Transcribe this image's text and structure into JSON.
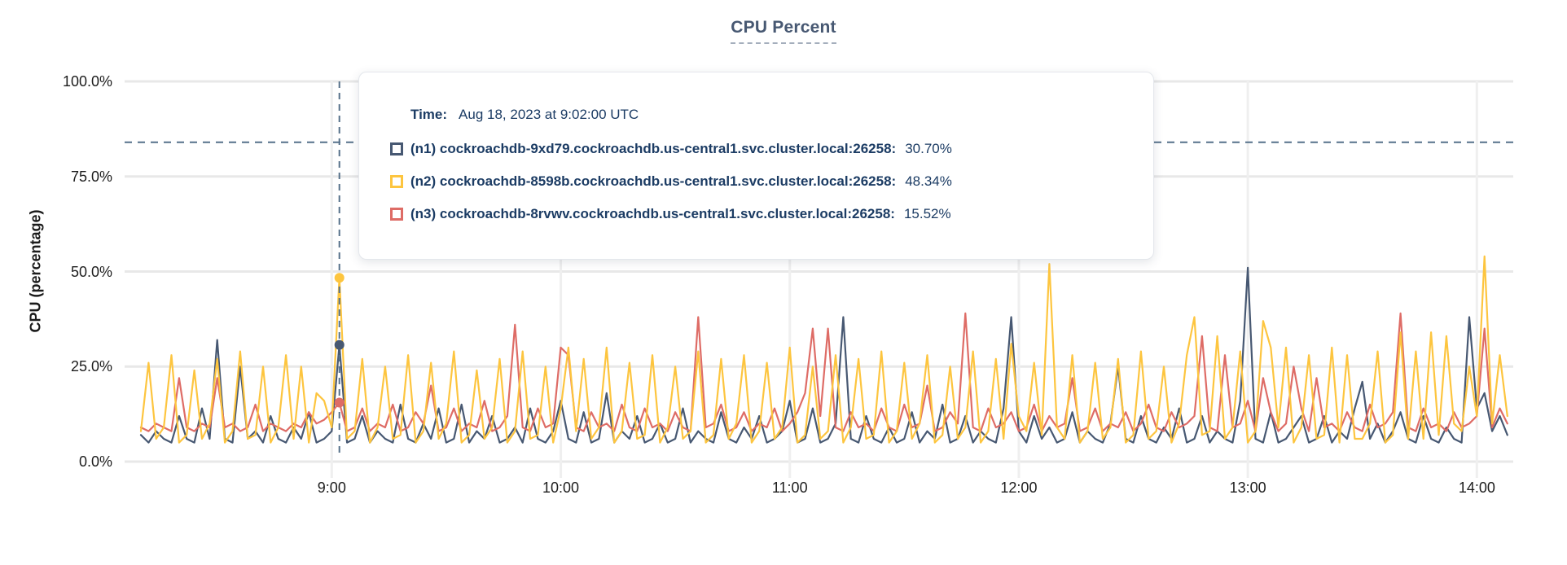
{
  "title": "CPU Percent",
  "tooltip": {
    "time_label": "Time:",
    "time_value": "Aug 18, 2023 at 9:02:00 UTC",
    "rows": [
      {
        "label": "(n1) cockroachdb-9xd79.cockroachdb.us-central1.svc.cluster.local:26258:",
        "value": "30.70%",
        "color": "#475872"
      },
      {
        "label": "(n2) cockroachdb-8598b.cockroachdb.us-central1.svc.cluster.local:26258:",
        "value": "48.34%",
        "color": "#fdc53f"
      },
      {
        "label": "(n3) cockroachdb-8rvwv.cockroachdb.us-central1.svc.cluster.local:26258:",
        "value": "15.52%",
        "color": "#de6c66"
      }
    ]
  },
  "colors": {
    "title": "#475872",
    "grid_horizontal": "#e8e8e8",
    "grid_vertical": "#efefef",
    "dashed_rule": "#56718a",
    "axis_text": "#1d1d1d",
    "tooltip_text": "#1c3c64"
  },
  "chart_data": {
    "type": "line",
    "title": "CPU Percent",
    "xlabel": "",
    "ylabel": "CPU (percentage)",
    "ylim": [
      0,
      100
    ],
    "grid": true,
    "y_ticks": [
      {
        "value": 100,
        "label": "100.0%"
      },
      {
        "value": 75,
        "label": "75.0%"
      },
      {
        "value": 50,
        "label": "50.0%"
      },
      {
        "value": 25,
        "label": "25.0%"
      },
      {
        "value": 0,
        "label": "0.0%"
      }
    ],
    "x_ticks": [
      {
        "time": "9:00",
        "label": "9:00"
      },
      {
        "time": "10:00",
        "label": "10:00"
      },
      {
        "time": "11:00",
        "label": "11:00"
      },
      {
        "time": "12:00",
        "label": "12:00"
      },
      {
        "time": "13:00",
        "label": "13:00"
      },
      {
        "time": "14:00",
        "label": "14:00"
      }
    ],
    "x_start": "8:10",
    "x_end": "14:08",
    "step_minutes": 2,
    "threshold_dashed_line_pct": 84,
    "hover": {
      "time": "9:02",
      "time_full": "Aug 18, 2023 at 9:02:00 UTC",
      "values": [
        30.7,
        48.34,
        15.52
      ]
    },
    "series": [
      {
        "name": "(n1) cockroachdb-9xd79.cockroachdb.us-central1.svc.cluster.local:26258",
        "color": "#475872",
        "hover_value_pct": 30.7,
        "values": [
          7,
          5,
          8,
          6,
          5,
          12,
          6,
          5,
          14,
          6,
          32,
          6,
          5,
          25,
          6,
          8,
          5,
          12,
          6,
          5,
          9,
          6,
          13,
          5,
          6,
          8,
          30.7,
          5,
          6,
          12,
          5,
          8,
          6,
          5,
          15,
          6,
          5,
          10,
          6,
          14,
          5,
          6,
          15,
          5,
          8,
          6,
          12,
          5,
          6,
          9,
          5,
          14,
          6,
          5,
          8,
          16,
          6,
          5,
          13,
          5,
          6,
          18,
          5,
          8,
          6,
          12,
          5,
          6,
          10,
          5,
          6,
          14,
          5,
          8,
          6,
          5,
          13,
          6,
          5,
          9,
          6,
          12,
          5,
          6,
          8,
          16,
          5,
          6,
          14,
          5,
          6,
          10,
          38,
          6,
          5,
          12,
          6,
          5,
          9,
          5,
          6,
          13,
          5,
          8,
          6,
          15,
          5,
          6,
          12,
          5,
          8,
          6,
          5,
          14,
          38,
          8,
          5,
          12,
          6,
          9,
          5,
          6,
          13,
          5,
          8,
          6,
          5,
          10,
          25,
          6,
          5,
          12,
          6,
          5,
          9,
          6,
          14,
          5,
          6,
          12,
          5,
          8,
          6,
          5,
          16,
          51,
          6,
          5,
          13,
          5,
          6,
          9,
          12,
          5,
          6,
          12,
          5,
          8,
          6,
          14,
          21,
          6,
          10,
          5,
          8,
          13,
          6,
          5,
          12,
          6,
          5,
          9,
          6,
          5,
          38,
          14,
          18,
          8,
          12,
          7
        ]
      },
      {
        "name": "(n2) cockroachdb-8598b.cockroachdb.us-central1.svc.cluster.local:26258",
        "color": "#fdc53f",
        "hover_value_pct": 48.34,
        "values": [
          8,
          26,
          6,
          9,
          28,
          5,
          7,
          24,
          6,
          10,
          27,
          5,
          8,
          29,
          6,
          7,
          25,
          5,
          9,
          28,
          6,
          25,
          5,
          18,
          16,
          9,
          48.34,
          6,
          8,
          27,
          5,
          9,
          25,
          6,
          7,
          28,
          5,
          8,
          26,
          6,
          10,
          29,
          5,
          7,
          24,
          6,
          9,
          27,
          5,
          8,
          29,
          6,
          7,
          25,
          5,
          14,
          30,
          8,
          27,
          6,
          9,
          30,
          5,
          8,
          26,
          6,
          7,
          28,
          5,
          9,
          25,
          6,
          8,
          29,
          5,
          7,
          27,
          6,
          10,
          28,
          5,
          8,
          26,
          6,
          9,
          30,
          5,
          7,
          25,
          6,
          8,
          28,
          5,
          9,
          27,
          6,
          7,
          29,
          5,
          8,
          26,
          6,
          10,
          28,
          5,
          7,
          25,
          6,
          9,
          29,
          5,
          8,
          27,
          6,
          31,
          12,
          8,
          26,
          7,
          52,
          9,
          6,
          28,
          5,
          8,
          26,
          6,
          9,
          27,
          5,
          7,
          29,
          6,
          8,
          25,
          5,
          10,
          28,
          38,
          7,
          8,
          33,
          6,
          9,
          29,
          5,
          8,
          37,
          30,
          9,
          30,
          5,
          9,
          28,
          6,
          7,
          30,
          5,
          28,
          6,
          6,
          10,
          29,
          5,
          7,
          34,
          6,
          29,
          6,
          34,
          7,
          33,
          10,
          8,
          25,
          12,
          54,
          10,
          28,
          12
        ]
      },
      {
        "name": "(n3) cockroachdb-8rvwv.cockroachdb.us-central1.svc.cluster.local:26258",
        "color": "#de6c66",
        "hover_value_pct": 15.52,
        "values": [
          9,
          8,
          10,
          9,
          8,
          22,
          9,
          8,
          10,
          9,
          22,
          9,
          10,
          8,
          9,
          15,
          8,
          10,
          9,
          8,
          10,
          9,
          13,
          10,
          11,
          13,
          15.52,
          8,
          9,
          14,
          8,
          10,
          9,
          15,
          8,
          9,
          13,
          10,
          20,
          8,
          9,
          14,
          8,
          10,
          9,
          16,
          8,
          9,
          12,
          36,
          9,
          8,
          14,
          9,
          10,
          30,
          28,
          9,
          8,
          13,
          9,
          10,
          8,
          15,
          9,
          8,
          14,
          9,
          10,
          8,
          13,
          9,
          8,
          38,
          9,
          10,
          15,
          8,
          9,
          13,
          8,
          10,
          9,
          14,
          8,
          10,
          13,
          18,
          35,
          12,
          35,
          9,
          8,
          13,
          9,
          10,
          8,
          14,
          9,
          8,
          15,
          9,
          10,
          20,
          8,
          9,
          13,
          10,
          39,
          9,
          8,
          14,
          9,
          10,
          13,
          8,
          9,
          15,
          8,
          12,
          9,
          10,
          22,
          8,
          9,
          14,
          8,
          10,
          9,
          13,
          8,
          10,
          15,
          9,
          8,
          13,
          9,
          10,
          12,
          33,
          9,
          8,
          28,
          9,
          10,
          16,
          8,
          22,
          13,
          8,
          10,
          25,
          14,
          8,
          22,
          9,
          10,
          8,
          13,
          9,
          8,
          15,
          9,
          10,
          13,
          39,
          9,
          8,
          14,
          9,
          10,
          8,
          13,
          9,
          10,
          12,
          35,
          9,
          14,
          10
        ]
      }
    ]
  }
}
